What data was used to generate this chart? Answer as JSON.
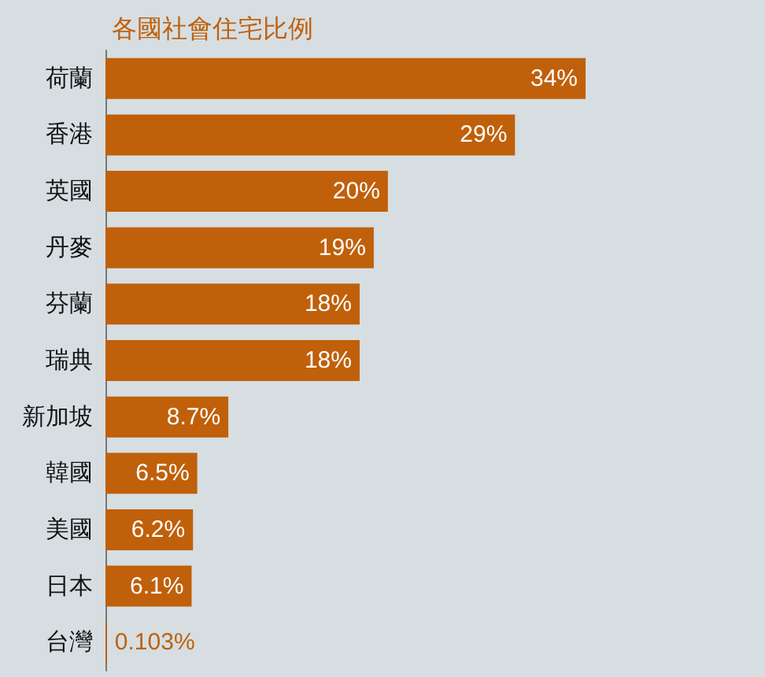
{
  "chart_data": {
    "type": "bar",
    "orientation": "horizontal",
    "title": "各國社會住宅比例",
    "categories": [
      "荷蘭",
      "香港",
      "英國",
      "丹麥",
      "芬蘭",
      "瑞典",
      "新加坡",
      "韓國",
      "美國",
      "日本",
      "台灣"
    ],
    "values": [
      34,
      29,
      20,
      19,
      18,
      18,
      8.7,
      6.5,
      6.2,
      6.1,
      0.103
    ],
    "value_labels": [
      "34%",
      "29%",
      "20%",
      "19%",
      "18%",
      "18%",
      "8.7%",
      "6.5%",
      "6.2%",
      "6.1%",
      "0.103%"
    ],
    "color": "#c0600a"
  }
}
